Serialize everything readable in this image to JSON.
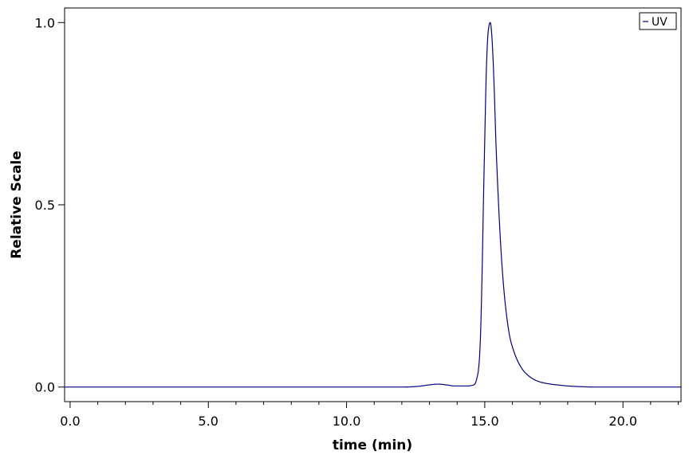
{
  "chart_data": {
    "type": "line",
    "xlabel": "time (min)",
    "ylabel": "Relative Scale",
    "xlim": [
      -0.2,
      22.1
    ],
    "ylim": [
      -0.04,
      1.04
    ],
    "x_ticks": [
      {
        "value": 0.0,
        "label": "0.0"
      },
      {
        "value": 5.0,
        "label": "5.0"
      },
      {
        "value": 10.0,
        "label": "10.0"
      },
      {
        "value": 15.0,
        "label": "15.0"
      },
      {
        "value": 20.0,
        "label": "20.0"
      }
    ],
    "y_ticks": [
      {
        "value": 0.0,
        "label": "0.0"
      },
      {
        "value": 0.5,
        "label": "0.5"
      },
      {
        "value": 1.0,
        "label": "1.0"
      }
    ],
    "grid": false,
    "legend_position": "top-right",
    "series": [
      {
        "name": "UV",
        "color": "#000080",
        "x": [
          -0.2,
          5.0,
          10.0,
          12.0,
          12.6,
          13.0,
          13.3,
          13.6,
          13.9,
          14.3,
          14.6,
          14.7,
          14.8,
          14.85,
          14.9,
          14.95,
          15.0,
          15.05,
          15.1,
          15.15,
          15.2,
          15.25,
          15.3,
          15.35,
          15.4,
          15.5,
          15.6,
          15.7,
          15.8,
          15.9,
          16.0,
          16.2,
          16.4,
          16.6,
          16.8,
          17.0,
          17.3,
          17.6,
          18.0,
          18.5,
          19.0,
          20.0,
          22.1
        ],
        "y": [
          0.0,
          0.0,
          0.0,
          0.0,
          0.002,
          0.006,
          0.008,
          0.006,
          0.003,
          0.003,
          0.006,
          0.02,
          0.07,
          0.15,
          0.3,
          0.5,
          0.68,
          0.85,
          0.95,
          0.99,
          1.0,
          0.97,
          0.9,
          0.8,
          0.68,
          0.5,
          0.36,
          0.26,
          0.19,
          0.14,
          0.11,
          0.07,
          0.045,
          0.03,
          0.02,
          0.014,
          0.009,
          0.006,
          0.003,
          0.001,
          0.0,
          0.0,
          0.0
        ]
      }
    ]
  }
}
